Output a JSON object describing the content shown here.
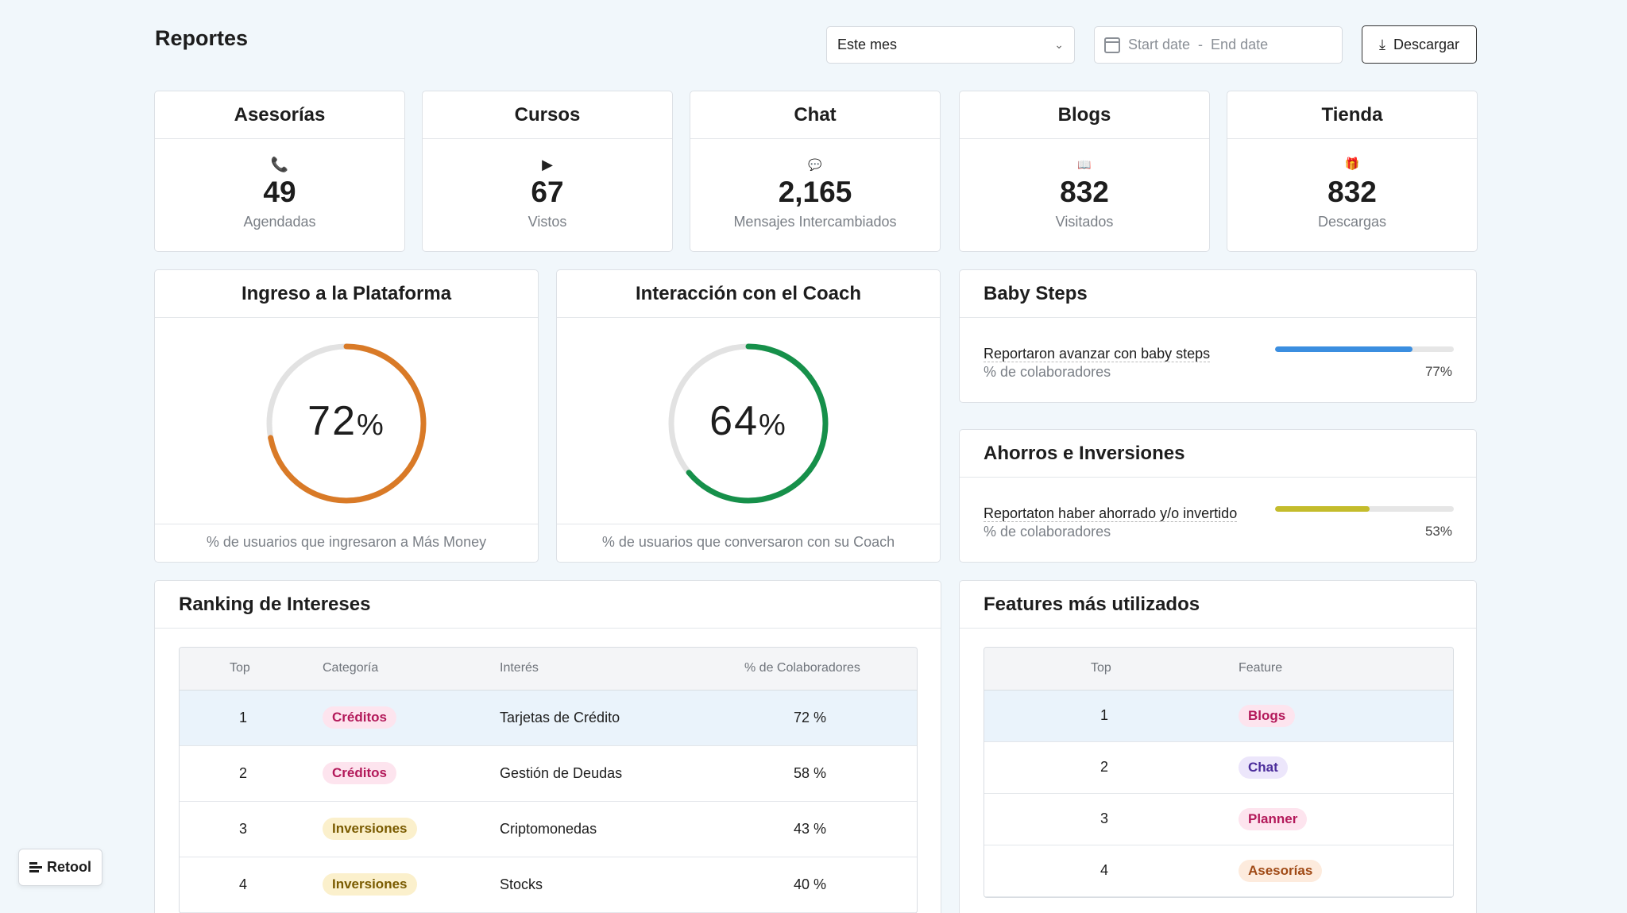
{
  "page": {
    "title": "Reportes"
  },
  "filters": {
    "period": "Este mes",
    "date_start_placeholder": "Start date",
    "date_sep": "-",
    "date_end_placeholder": "End date",
    "download_label": "Descargar"
  },
  "stats": [
    {
      "title": "Asesorías",
      "icon": "phone-icon",
      "glyph": "📞",
      "value": "49",
      "label": "Agendadas"
    },
    {
      "title": "Cursos",
      "icon": "play-icon",
      "glyph": "▶",
      "value": "67",
      "label": "Vistos"
    },
    {
      "title": "Chat",
      "icon": "speech-bubble-icon",
      "glyph": "💬",
      "value": "2,165",
      "label": "Mensajes Intercambiados"
    },
    {
      "title": "Blogs",
      "icon": "book-icon",
      "glyph": "📖",
      "value": "832",
      "label": "Visitados"
    },
    {
      "title": "Tienda",
      "icon": "gift-icon",
      "glyph": "🎁",
      "value": "832",
      "label": "Descargas"
    }
  ],
  "rings": [
    {
      "title": "Ingreso a la Plataforma",
      "value": 72,
      "value_text": "72",
      "unit": "%",
      "color": "#d97a27",
      "footer": "% de usuarios que ingresaron a Más Money"
    },
    {
      "title": "Interacción con el Coach",
      "value": 64,
      "value_text": "64",
      "unit": "%",
      "color": "#16904a",
      "footer": "% de usuarios que conversaron con su Coach"
    }
  ],
  "bars": [
    {
      "title": "Baby Steps",
      "label": "Reportaron avanzar con baby steps",
      "sub": "% de colaboradores",
      "value": 77,
      "value_text": "77%",
      "color": "#3b8ee0"
    },
    {
      "title": "Ahorros e Inversiones",
      "label": "Reportaton haber ahorrado y/o invertido",
      "sub": "% de colaboradores",
      "value": 53,
      "value_text": "53%",
      "color": "#c4bc2c"
    }
  ],
  "ranking": {
    "title": "Ranking de Intereses",
    "columns": [
      "Top",
      "Categoría",
      "Interés",
      "% de Colaboradores"
    ],
    "rows": [
      {
        "top": "1",
        "category": "Créditos",
        "cat_color": "#fde4ee",
        "cat_text": "#b3195a",
        "interest": "Tarjetas de Crédito",
        "pct": "72 %"
      },
      {
        "top": "2",
        "category": "Créditos",
        "cat_color": "#fde4ee",
        "cat_text": "#b3195a",
        "interest": "Gestión de Deudas",
        "pct": "58 %"
      },
      {
        "top": "3",
        "category": "Inversiones",
        "cat_color": "#fbf0cc",
        "cat_text": "#7a5b00",
        "interest": "Criptomonedas",
        "pct": "43 %"
      },
      {
        "top": "4",
        "category": "Inversiones",
        "cat_color": "#fbf0cc",
        "cat_text": "#7a5b00",
        "interest": "Stocks",
        "pct": "40 %"
      }
    ]
  },
  "features": {
    "title": "Features más utilizados",
    "columns": [
      "Top",
      "Feature"
    ],
    "rows": [
      {
        "top": "1",
        "feature": "Blogs",
        "bg": "#fde4ee",
        "fg": "#b3195a"
      },
      {
        "top": "2",
        "feature": "Chat",
        "bg": "#ece6fb",
        "fg": "#4b2c9b"
      },
      {
        "top": "3",
        "feature": "Planner",
        "bg": "#fde4ee",
        "fg": "#b3195a"
      },
      {
        "top": "4",
        "feature": "Asesorías",
        "bg": "#fdebdd",
        "fg": "#a04a16"
      }
    ]
  },
  "branding": {
    "badge": "Retool"
  }
}
